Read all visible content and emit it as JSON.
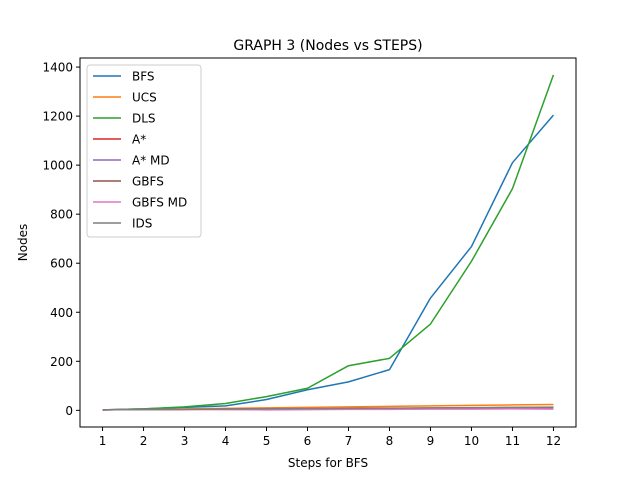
{
  "chart_data": {
    "type": "line",
    "title": "GRAPH 3 (Nodes vs STEPS)",
    "xlabel": "Steps for BFS",
    "ylabel": "Nodes",
    "x": [
      1,
      2,
      3,
      4,
      5,
      6,
      7,
      8,
      9,
      10,
      11,
      12
    ],
    "xlim": [
      0.45,
      12.55
    ],
    "ylim": [
      -68,
      1437
    ],
    "yticks": [
      0,
      200,
      400,
      600,
      800,
      1000,
      1200,
      1400
    ],
    "legend_position": "top-left",
    "grid": false,
    "series": [
      {
        "name": "BFS",
        "color": "#1f77b4",
        "values": [
          2,
          6,
          12,
          18,
          44,
          84,
          116,
          166,
          458,
          668,
          1010,
          1204
        ]
      },
      {
        "name": "UCS",
        "color": "#ff7f0e",
        "values": [
          2,
          4,
          6,
          8,
          10,
          12,
          14,
          16,
          18,
          20,
          22,
          24
        ]
      },
      {
        "name": "DLS",
        "color": "#2ca02c",
        "values": [
          2,
          6,
          14,
          28,
          56,
          90,
          182,
          212,
          352,
          608,
          904,
          1368
        ]
      },
      {
        "name": "A*",
        "color": "#d62728",
        "values": [
          2,
          3,
          4,
          5,
          5,
          6,
          7,
          8,
          9,
          10,
          11,
          12
        ]
      },
      {
        "name": "A* MD",
        "color": "#9467bd",
        "values": [
          2,
          3,
          4,
          4,
          5,
          6,
          6,
          7,
          8,
          9,
          10,
          11
        ]
      },
      {
        "name": "GBFS",
        "color": "#8c564b",
        "values": [
          2,
          3,
          4,
          5,
          5,
          6,
          7,
          8,
          9,
          10,
          11,
          12
        ]
      },
      {
        "name": "GBFS MD",
        "color": "#e377c2",
        "values": [
          2,
          3,
          4,
          3,
          2,
          3,
          4,
          4,
          5,
          5,
          6,
          5
        ]
      },
      {
        "name": "IDS",
        "color": "#7f7f7f",
        "values": [
          2,
          3,
          4,
          5,
          6,
          7,
          8,
          9,
          10,
          11,
          12,
          13
        ]
      }
    ]
  }
}
